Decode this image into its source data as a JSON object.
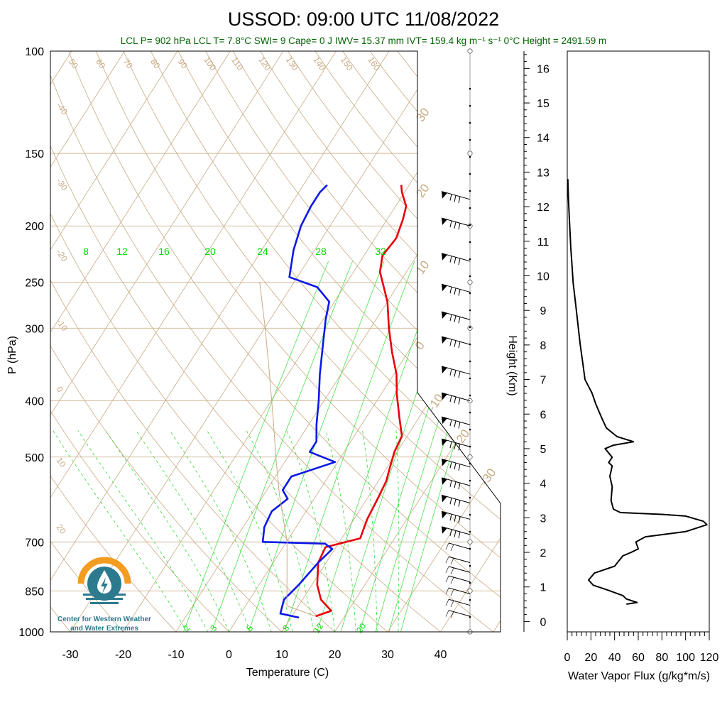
{
  "title": "USSOD: 09:00 UTC 11/08/2022",
  "subtitle": "LCL P= 902 hPa  LCL T= 7.8°C  SWI= 9  Cape= 0 J  IWV= 15.37 mm  IVT= 159.4 kg m⁻¹ s⁻¹  0°C Height = 2491.59 m",
  "logo": {
    "line1": "Center for Western Weather",
    "line2": "and Water Extremes",
    "colors": {
      "sun": "#f39c1f",
      "water": "#2c7a8e"
    }
  },
  "chart_data": [
    {
      "type": "line",
      "name": "skew-t",
      "xlabel": "Temperature (C)",
      "ylabel": "P (hPa)",
      "xlim": [
        -34,
        52
      ],
      "ylim": [
        1000,
        100
      ],
      "y_scale": "log",
      "x_ticks": [
        "-30",
        "-20",
        "-10",
        "0",
        "10",
        "20",
        "30",
        "40"
      ],
      "y_ticks": [
        "100",
        "150",
        "200",
        "250",
        "300",
        "400",
        "500",
        "700",
        "850",
        "1000"
      ],
      "isotherm_labels": [
        "-40",
        "-30",
        "-20",
        "-10",
        "0",
        "10",
        "20"
      ],
      "dry_adiabat_labels": [
        "50",
        "60",
        "70",
        "80",
        "90",
        "100",
        "110",
        "120",
        "130",
        "140",
        "150",
        "160"
      ],
      "mixing_ratio_labels_top": [
        "8",
        "12",
        "16",
        "20",
        "24",
        "28",
        "32"
      ],
      "mixing_ratio_labels_bottom": [
        "2",
        "3",
        "5",
        "8",
        "12",
        "20"
      ],
      "moist_adiabat_labels": [
        "30",
        "20",
        "10",
        "0",
        "-10",
        "-20",
        "-30"
      ],
      "colors": {
        "temperature": "#e8000b",
        "dewpoint": "#0b19e8",
        "parcel": "#c8aa82",
        "isotherm": "#c8aa82",
        "mixing": "#33dd33",
        "wind": "#000000"
      },
      "series": [
        {
          "name": "temperature",
          "points": [
            [
              14.5,
              940
            ],
            [
              16.8,
              920
            ],
            [
              13.5,
              880
            ],
            [
              11,
              830
            ],
            [
              8.5,
              760
            ],
            [
              8.0,
              715
            ],
            [
              13.5,
              690
            ],
            [
              12.5,
              640
            ],
            [
              12.0,
              590
            ],
            [
              11.5,
              550
            ],
            [
              10.5,
              520
            ],
            [
              9.5,
              490
            ],
            [
              9.0,
              460
            ],
            [
              6.5,
              430
            ],
            [
              3.0,
              390
            ],
            [
              0.5,
              360
            ],
            [
              -3.0,
              330
            ],
            [
              -6.5,
              300
            ],
            [
              -10.0,
              270
            ],
            [
              -15.0,
              240
            ],
            [
              -16.5,
              225
            ],
            [
              -16.0,
              210
            ],
            [
              -17.0,
              195
            ],
            [
              -18.0,
              185
            ],
            [
              -20.5,
              175
            ],
            [
              -21.5,
              170
            ]
          ]
        },
        {
          "name": "dewpoint",
          "points": [
            [
              11.5,
              945
            ],
            [
              7.5,
              930
            ],
            [
              6.5,
              880
            ],
            [
              7.5,
              830
            ],
            [
              8.5,
              760
            ],
            [
              9.5,
              720
            ],
            [
              7.5,
              705
            ],
            [
              -4.5,
              700
            ],
            [
              -6.0,
              660
            ],
            [
              -6.5,
              620
            ],
            [
              -5.0,
              590
            ],
            [
              -7.0,
              570
            ],
            [
              -7.0,
              540
            ],
            [
              -0.5,
              510
            ],
            [
              -6.5,
              490
            ],
            [
              -6.5,
              470
            ],
            [
              -8.5,
              440
            ],
            [
              -11.0,
              400
            ],
            [
              -14.0,
              360
            ],
            [
              -17.0,
              320
            ],
            [
              -19.5,
              290
            ],
            [
              -21.0,
              270
            ],
            [
              -25.0,
              255
            ],
            [
              -31.5,
              245
            ],
            [
              -34.0,
              220
            ],
            [
              -35.5,
              200
            ],
            [
              -36.0,
              185
            ],
            [
              -36.0,
              175
            ],
            [
              -35.5,
              170
            ]
          ]
        },
        {
          "name": "parcel",
          "points": [
            [
              14.5,
              940
            ],
            [
              7.8,
              902
            ],
            [
              2.6,
              760
            ],
            [
              0.1,
              700
            ],
            [
              -7.1,
              580
            ],
            [
              -11.6,
              510
            ],
            [
              -17.4,
              430
            ],
            [
              -24.5,
              350
            ],
            [
              -29.9,
              300
            ],
            [
              -36.5,
              250
            ]
          ]
        }
      ],
      "wind_barb_pressures": [
        940,
        900,
        860,
        820,
        790,
        760,
        720,
        680,
        640,
        600,
        560,
        520,
        480,
        440,
        400,
        360,
        320,
        290,
        260,
        230,
        200,
        180
      ]
    },
    {
      "type": "line",
      "name": "water-vapor-flux",
      "xlabel": "Water Vapor Flux (g/kg*m/s)",
      "ylabel": "Height (Km)",
      "xlim": [
        0,
        120
      ],
      "ylim": [
        -0.3,
        16.5
      ],
      "x_ticks": [
        "0",
        "20",
        "40",
        "60",
        "80",
        "100",
        "120"
      ],
      "y_ticks": [
        "0",
        "1",
        "2",
        "3",
        "4",
        "5",
        "6",
        "7",
        "8",
        "9",
        "10",
        "11",
        "12",
        "13",
        "14",
        "15",
        "16"
      ],
      "series": [
        {
          "name": "flux",
          "points": [
            [
              50,
              0.5
            ],
            [
              59,
              0.55
            ],
            [
              50,
              0.65
            ],
            [
              47,
              0.75
            ],
            [
              35,
              0.9
            ],
            [
              22,
              1.05
            ],
            [
              18,
              1.2
            ],
            [
              23,
              1.4
            ],
            [
              40,
              1.6
            ],
            [
              47,
              1.9
            ],
            [
              54,
              2.0
            ],
            [
              60,
              2.1
            ],
            [
              58,
              2.3
            ],
            [
              66,
              2.45
            ],
            [
              100,
              2.6
            ],
            [
              118,
              2.8
            ],
            [
              115,
              2.9
            ],
            [
              100,
              3.05
            ],
            [
              80,
              3.1
            ],
            [
              45,
              3.15
            ],
            [
              39,
              3.25
            ],
            [
              37,
              3.5
            ],
            [
              38,
              3.9
            ],
            [
              36,
              4.2
            ],
            [
              38,
              4.5
            ],
            [
              35,
              4.6
            ],
            [
              38,
              4.75
            ],
            [
              32,
              5.0
            ],
            [
              39,
              5.1
            ],
            [
              56,
              5.2
            ],
            [
              42,
              5.35
            ],
            [
              33,
              5.6
            ],
            [
              29,
              5.9
            ],
            [
              24,
              6.3
            ],
            [
              21,
              6.6
            ],
            [
              15,
              7.0
            ],
            [
              13,
              7.5
            ],
            [
              11,
              8.0
            ],
            [
              9,
              8.6
            ],
            [
              7,
              9.2
            ],
            [
              5,
              9.8
            ],
            [
              4,
              10.3
            ],
            [
              3,
              10.8
            ],
            [
              2,
              11.5
            ],
            [
              1,
              12.2
            ],
            [
              0.5,
              12.8
            ]
          ]
        }
      ]
    }
  ]
}
